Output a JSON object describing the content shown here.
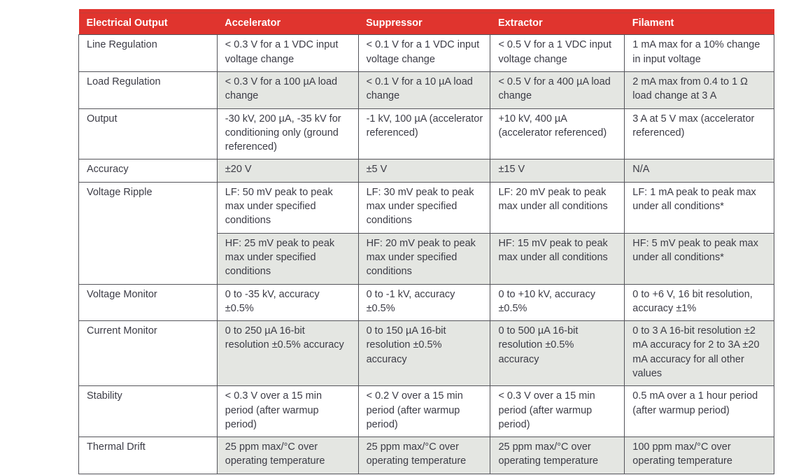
{
  "table": {
    "columns": [
      {
        "label": "Electrical Output"
      },
      {
        "label": "Accelerator"
      },
      {
        "label": "Suppressor"
      },
      {
        "label": "Extractor"
      },
      {
        "label": "Filament"
      }
    ],
    "rows": [
      {
        "label": "Line Regulation",
        "shaded": false,
        "cells": [
          "< 0.3 V for a 1 VDC input voltage change",
          "< 0.1 V for a 1 VDC input voltage change",
          "< 0.5 V for a 1 VDC input voltage change",
          "1 mA max for a 10% change in input voltage"
        ]
      },
      {
        "label": "Load Regulation",
        "shaded": true,
        "cells": [
          "< 0.3 V for a 100 µA load change",
          "< 0.1 V for a 10 µA load change",
          "< 0.5 V for a 400 µA load change",
          "2 mA max from 0.4 to 1 Ω load change at 3 A"
        ]
      },
      {
        "label": "Output",
        "shaded": false,
        "cells": [
          "-30 kV, 200 µA, -35 kV for conditioning only (ground referenced)",
          "-1 kV, 100 µA (accelerator referenced)",
          "+10 kV, 400 µA (accelerator referenced)",
          "3 A at 5 V max (accelerator referenced)"
        ]
      },
      {
        "label": "Accuracy",
        "shaded": true,
        "cells": [
          "±20 V",
          "±5 V",
          "±15 V",
          "N/A"
        ]
      },
      {
        "label": "Voltage Ripple",
        "label_rowspan": 2,
        "shaded": false,
        "cells": [
          "LF: 50 mV peak to peak max under specified conditions",
          "LF: 30 mV peak to peak max under specified conditions",
          "LF: 20 mV peak to peak max under all conditions",
          "LF: 1 mA peak to peak max under all conditions*"
        ]
      },
      {
        "label": null,
        "shaded": true,
        "cells": [
          "HF: 25 mV peak to peak max under specified conditions",
          "HF: 20 mV peak to peak max under specified conditions",
          "HF: 15 mV peak to peak max under all conditions",
          "HF: 5 mV peak to peak max under all conditions*"
        ]
      },
      {
        "label": "Voltage Monitor",
        "shaded": false,
        "cells": [
          "0 to -35 kV, accuracy ±0.5%",
          "0 to -1 kV, accuracy ±0.5%",
          "0 to +10 kV, accuracy ±0.5%",
          "0 to +6 V, 16 bit resolution, accuracy ±1%"
        ]
      },
      {
        "label": "Current Monitor",
        "shaded": true,
        "cells": [
          "0 to 250 µA 16-bit resolution ±0.5% accuracy",
          "0 to 150 µA 16-bit resolution ±0.5% accuracy",
          "0 to 500 µA 16-bit resolution ±0.5% accuracy",
          "0 to 3 A 16-bit resolution ±2 mA accuracy for 2 to 3A ±20 mA accuracy for all other values"
        ]
      },
      {
        "label": "Stability",
        "shaded": false,
        "cells": [
          "< 0.3 V over a 15 min period (after warmup period)",
          "< 0.2 V over a 15 min period (after warmup period)",
          "< 0.3 V over a 15 min period (after warmup period)",
          "0.5 mA over a 1 hour period (after warmup period)"
        ]
      },
      {
        "label": "Thermal Drift",
        "shaded": true,
        "cells": [
          "25 ppm max/°C over operating temperature",
          "25 ppm max/°C over operating temperature",
          "25 ppm max/°C over operating temperature",
          "100 ppm max/°C over operating temperature"
        ]
      }
    ],
    "colors": {
      "header_bg": "#e0342e",
      "header_accent_line": "#c23d36",
      "header_text": "#ffffff",
      "shaded_row_bg": "#e4e6e2",
      "border": "#54545a",
      "text": "#3c3c46",
      "page_bg": "#ffffff"
    }
  }
}
